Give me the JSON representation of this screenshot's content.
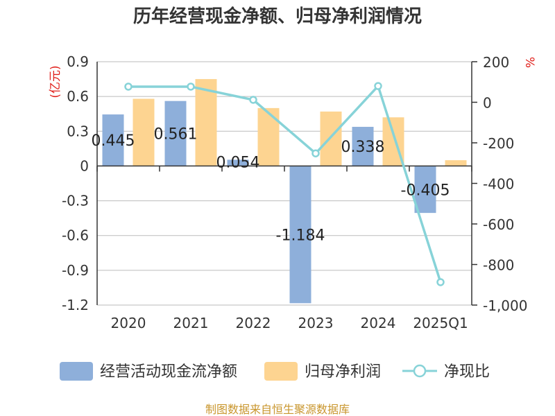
{
  "chart_data": {
    "type": "bar",
    "title": "历年经营现金净额、归母净利润情况",
    "categories": [
      "2020",
      "2021",
      "2022",
      "2023",
      "2024",
      "2025Q1"
    ],
    "series": [
      {
        "name": "经营活动现金流净额",
        "type": "bar",
        "axis": "left",
        "values": [
          0.445,
          0.561,
          0.054,
          -1.184,
          0.338,
          -0.405
        ],
        "labels": [
          "0.445",
          "0.561",
          "0.054",
          "-1.184",
          "0.338",
          "-0.405"
        ],
        "color": "#8eafda"
      },
      {
        "name": "归母净利润",
        "type": "bar",
        "axis": "left",
        "values": [
          0.58,
          0.75,
          0.5,
          0.47,
          0.42,
          0.05
        ],
        "color": "#fdd491"
      },
      {
        "name": "净现比",
        "type": "line",
        "axis": "right",
        "values": [
          77,
          77,
          12,
          -252,
          80,
          -887
        ],
        "color": "#87d3d8"
      }
    ],
    "left_axis": {
      "unit": "(亿元)",
      "ylim": [
        -1.2,
        0.9
      ],
      "ticks": [
        0.9,
        0.6,
        0.3,
        0,
        -0.3,
        -0.6,
        -0.9,
        -1.2
      ],
      "tick_labels": [
        "0.9",
        "0.6",
        "0.3",
        "0",
        "-0.3",
        "-0.6",
        "-0.9",
        "-1.2"
      ]
    },
    "right_axis": {
      "unit": "%",
      "ylim": [
        -1000,
        200
      ],
      "ticks": [
        200,
        0,
        -200,
        -400,
        -600,
        -800,
        -1000
      ],
      "tick_labels": [
        "200",
        "0",
        "-200",
        "-400",
        "-600",
        "-800",
        "-1,000"
      ]
    },
    "grid": true,
    "legend_position": "bottom"
  },
  "source": "制图数据来自恒生聚源数据库"
}
